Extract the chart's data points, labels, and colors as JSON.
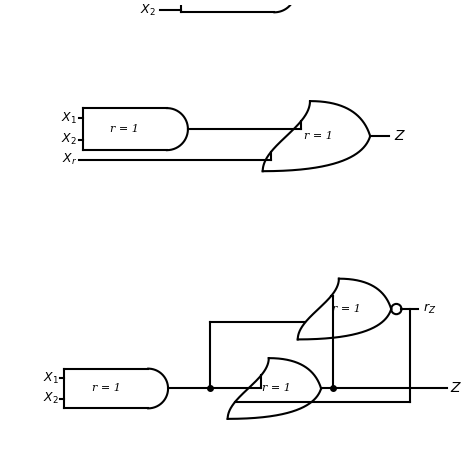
{
  "bg_color": "#ffffff",
  "line_color": "#000000",
  "line_width": 1.5,
  "fig_width": 4.74,
  "fig_height": 4.74,
  "dpi": 100
}
